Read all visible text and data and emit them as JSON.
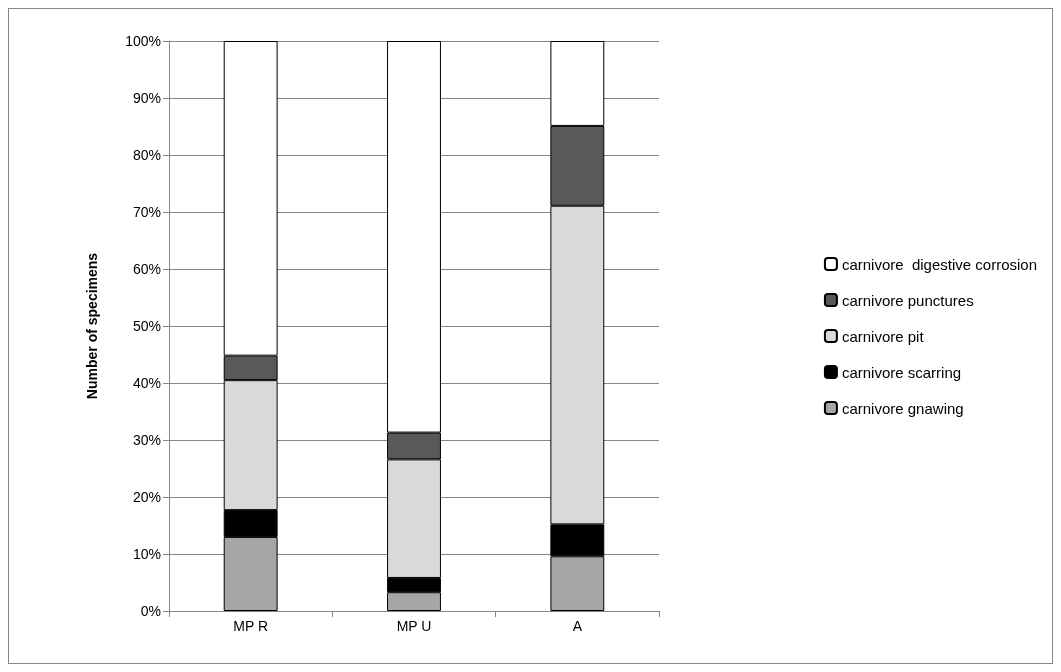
{
  "chart_data": {
    "type": "bar",
    "ylabel": "Number of specimens",
    "categories": [
      "MP R",
      "MP U",
      "A"
    ],
    "stacked": true,
    "series": [
      {
        "name": "carnivore gnawing",
        "color": "#a6a6a6",
        "values": [
          13,
          3.3,
          9.6
        ]
      },
      {
        "name": "carnivore scarring",
        "color": "#000000",
        "values": [
          4.7,
          2.5,
          5.6
        ]
      },
      {
        "name": "carnivore pit",
        "color": "#d9d9d9",
        "values": [
          22.8,
          20.8,
          55.9
        ]
      },
      {
        "name": "carnivore punctures",
        "color": "#595959",
        "values": [
          4.3,
          4.7,
          14
        ]
      },
      {
        "name": "carnivore  digestive corrosion",
        "color": "#ffffff",
        "values": [
          55.2,
          68.7,
          14.9
        ]
      }
    ],
    "ylim": [
      0,
      100
    ],
    "yticks": [
      {
        "value": 0,
        "label": "0%"
      },
      {
        "value": 10,
        "label": "10%"
      },
      {
        "value": 20,
        "label": "20%"
      },
      {
        "value": 30,
        "label": "30%"
      },
      {
        "value": 40,
        "label": "40%"
      },
      {
        "value": 50,
        "label": "50%"
      },
      {
        "value": 60,
        "label": "60%"
      },
      {
        "value": 70,
        "label": "70%"
      },
      {
        "value": 80,
        "label": "80%"
      },
      {
        "value": 90,
        "label": "90%"
      },
      {
        "value": 100,
        "label": "100%"
      }
    ],
    "grid": "y",
    "legend": "right"
  }
}
